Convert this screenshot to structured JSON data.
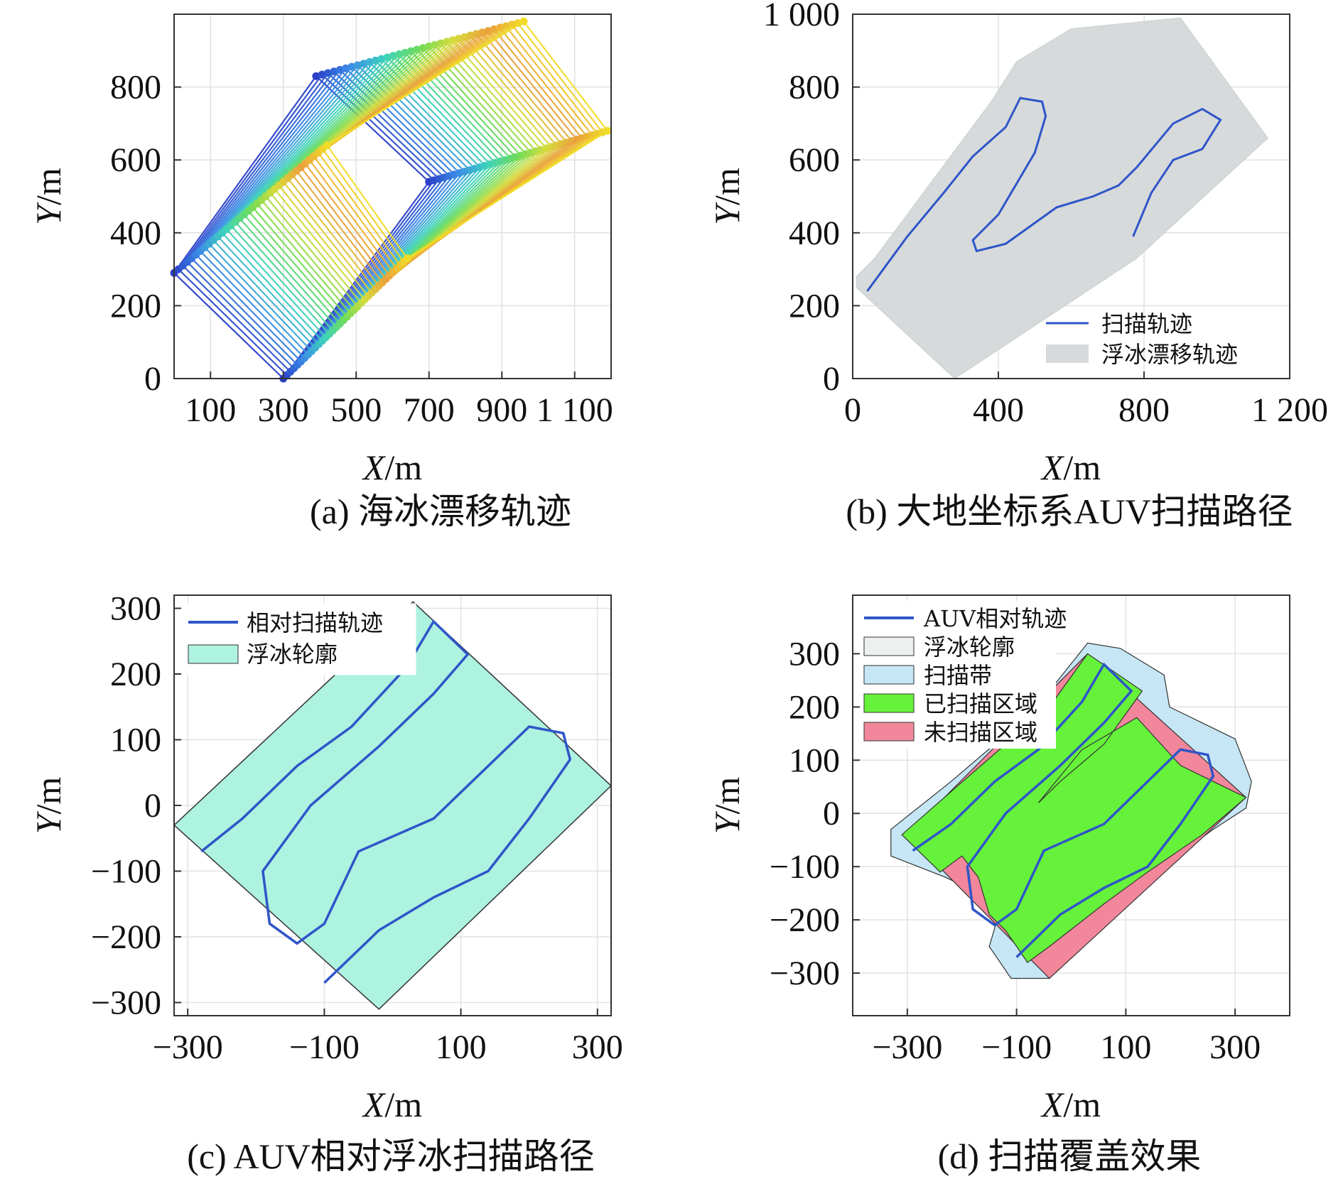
{
  "panels": [
    {
      "id": "a",
      "caption": "(a) 海冰漂移轨迹",
      "xlabel": "X/m",
      "ylabel": "Y/m",
      "xlim": [
        0,
        1200
      ],
      "ylim": [
        0,
        1000
      ],
      "xticks": [
        100,
        300,
        500,
        700,
        900,
        1100
      ],
      "xtick_labels": [
        "100",
        "300",
        "500",
        "700",
        "900",
        "1 100"
      ],
      "yticks": [
        0,
        200,
        400,
        600,
        800
      ],
      "ytick_labels": [
        "0",
        "200",
        "400",
        "600",
        "800"
      ]
    },
    {
      "id": "b",
      "caption": "(b) 大地坐标系AUV扫描路径",
      "xlabel": "X/m",
      "ylabel": "Y/m",
      "xlim": [
        0,
        1200
      ],
      "ylim": [
        0,
        1000
      ],
      "xticks": [
        0,
        400,
        800,
        1200
      ],
      "xtick_labels": [
        "0",
        "400",
        "800",
        "1 200"
      ],
      "yticks": [
        0,
        200,
        400,
        600,
        800,
        1000
      ],
      "ytick_labels": [
        "0",
        "200",
        "400",
        "600",
        "800",
        "1 000"
      ],
      "legend": [
        "扫描轨迹",
        "浮冰漂移轨迹"
      ]
    },
    {
      "id": "c",
      "caption": "(c) AUV相对浮冰扫描路径",
      "xlabel": "X/m",
      "ylabel": "Y/m",
      "xlim": [
        -320,
        320
      ],
      "ylim": [
        -320,
        320
      ],
      "xticks": [
        -300,
        -100,
        100,
        300
      ],
      "xtick_labels": [
        "−300",
        "−100",
        "100",
        "300"
      ],
      "yticks": [
        -300,
        -200,
        -100,
        0,
        100,
        200,
        300
      ],
      "ytick_labels": [
        "−300",
        "−200",
        "−100",
        "0",
        "100",
        "200",
        "300"
      ],
      "legend": [
        "相对扫描轨迹",
        "浮冰轮廓"
      ]
    },
    {
      "id": "d",
      "caption": "(d) 扫描覆盖效果",
      "xlabel": "X/m",
      "ylabel": "Y/m",
      "xlim": [
        -400,
        400
      ],
      "ylim": [
        -380,
        410
      ],
      "xticks": [
        -300,
        -100,
        100,
        300
      ],
      "xtick_labels": [
        "−300",
        "−100",
        "100",
        "300"
      ],
      "yticks": [
        -300,
        -200,
        -100,
        0,
        100,
        200,
        300
      ],
      "ytick_labels": [
        "−300",
        "−200",
        "−100",
        "0",
        "100",
        "200",
        "300"
      ],
      "legend": [
        "AUV相对轨迹",
        "浮冰轮廓",
        "扫描带",
        "已扫描区域",
        "未扫描区域"
      ]
    }
  ],
  "colors": {
    "track": "#2f55c8",
    "drift_gray": "#d6dadb",
    "floe_cyan": "#aef2e0",
    "swath_blue": "#c6e6f5",
    "scanned_green": "#66f23a",
    "unscanned_pink": "#f2879b"
  },
  "chart_data": [
    {
      "type": "line",
      "panel": "a",
      "description_series": "sea-ice drift snapshots (rectangles, colored by time)",
      "series": [
        {
          "values_start": [
            [
              300,
              0
            ],
            [
              0,
              290
            ],
            [
              390,
              830
            ],
            [
              700,
              540
            ]
          ],
          "values_end": [
            [
              640,
              330
            ],
            [
              420,
              640
            ],
            [
              960,
              980
            ],
            [
              1190,
              680
            ]
          ]
        }
      ]
    },
    {
      "type": "line",
      "panel": "b",
      "series": [
        {
          "name": "扫描轨迹",
          "x": [
            40,
            150,
            250,
            330,
            420,
            460,
            520,
            530,
            500,
            400,
            330,
            340,
            420,
            560,
            660,
            730,
            780,
            830,
            880,
            960,
            1010,
            960,
            880,
            820,
            770
          ],
          "y": [
            240,
            390,
            510,
            610,
            690,
            770,
            760,
            720,
            620,
            450,
            380,
            350,
            370,
            470,
            500,
            530,
            580,
            640,
            700,
            740,
            710,
            630,
            600,
            510,
            390
          ]
        }
      ]
    },
    {
      "type": "line",
      "panel": "c",
      "series": [
        {
          "name": "相对扫描轨迹",
          "x": [
            -280,
            -220,
            -140,
            -60,
            20,
            60,
            110,
            60,
            -20,
            -120,
            -190,
            -180,
            -140,
            -100,
            -50,
            60,
            140,
            200,
            250,
            260,
            200,
            140,
            60,
            -20,
            -100
          ],
          "y": [
            -70,
            -20,
            60,
            120,
            210,
            280,
            230,
            170,
            90,
            0,
            -100,
            -180,
            -210,
            -180,
            -70,
            -20,
            60,
            120,
            110,
            70,
            -20,
            -100,
            -140,
            -190,
            -270
          ]
        }
      ]
    },
    {
      "type": "line",
      "panel": "d",
      "series": [
        {
          "name": "AUV相对轨迹",
          "x": [
            -290,
            -220,
            -140,
            -60,
            20,
            60,
            110,
            60,
            -20,
            -120,
            -190,
            -180,
            -140,
            -100,
            -50,
            60,
            140,
            200,
            250,
            260,
            200,
            140,
            60,
            -20,
            -100
          ],
          "y": [
            -70,
            -20,
            60,
            120,
            210,
            280,
            230,
            170,
            90,
            0,
            -100,
            -180,
            -210,
            -180,
            -70,
            -20,
            60,
            120,
            110,
            70,
            -20,
            -100,
            -140,
            -190,
            -270
          ]
        }
      ]
    }
  ]
}
